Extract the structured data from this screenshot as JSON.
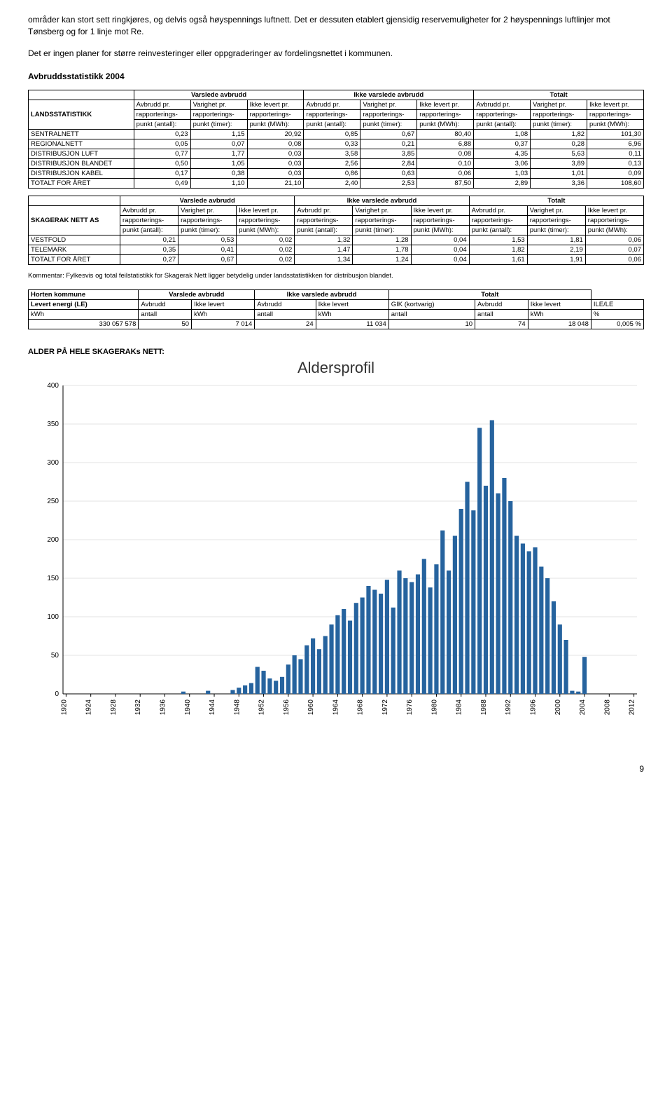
{
  "paragraphs": {
    "p1": "områder kan stort sett ringkjøres, og delvis også høyspennings luftnett. Det er dessuten etablert gjensidig reservemuligheter for 2 høyspennings luftlinjer mot Tønsberg og for 1 linje mot Re.",
    "p2": "Det er ingen planer for større reinvesteringer eller oppgraderinger av fordelingsnettet i kommunen."
  },
  "section_heading": "Avbruddsstatistikk 2004",
  "tables": {
    "lands": {
      "title": "LANDSSTATISTIKK",
      "groups": [
        "Varslede avbrudd",
        "Ikke varslede avbrudd",
        "Totalt"
      ],
      "sub1": [
        "Avbrudd pr.",
        "Varighet pr.",
        "Ikke levert pr.",
        "Avbrudd pr.",
        "Varighet pr.",
        "Ikke levert pr.",
        "Avbrudd pr.",
        "Varighet pr.",
        "Ikke levert pr."
      ],
      "sub2": [
        "rapporterings-",
        "rapporterings-",
        "rapporterings-",
        "rapporterings-",
        "rapporterings-",
        "rapporterings-",
        "rapporterings-",
        "rapporterings-",
        "rapporterings-"
      ],
      "sub3": [
        "punkt (antall):",
        "punkt (timer):",
        "punkt (MWh):",
        "punkt (antall):",
        "punkt (timer):",
        "punkt (MWh):",
        "punkt (antall):",
        "punkt (timer):",
        "punkt (MWh):"
      ],
      "rows": [
        {
          "label": "SENTRALNETT",
          "v": [
            "0,23",
            "1,15",
            "20,92",
            "0,85",
            "0,67",
            "80,40",
            "1,08",
            "1,82",
            "101,30"
          ]
        },
        {
          "label": "REGIONALNETT",
          "v": [
            "0,05",
            "0,07",
            "0,08",
            "0,33",
            "0,21",
            "6,88",
            "0,37",
            "0,28",
            "6,96"
          ]
        },
        {
          "label": "DISTRIBUSJON LUFT",
          "v": [
            "0,77",
            "1,77",
            "0,03",
            "3,58",
            "3,85",
            "0,08",
            "4,35",
            "5,63",
            "0,11"
          ]
        },
        {
          "label": "DISTRIBUSJON BLANDET",
          "v": [
            "0,50",
            "1,05",
            "0,03",
            "2,56",
            "2,84",
            "0,10",
            "3,06",
            "3,89",
            "0,13"
          ]
        },
        {
          "label": "DISTRIBUSJON KABEL",
          "v": [
            "0,17",
            "0,38",
            "0,03",
            "0,86",
            "0,63",
            "0,06",
            "1,03",
            "1,01",
            "0,09"
          ]
        },
        {
          "label": "TOTALT FOR ÅRET",
          "v": [
            "0,49",
            "1,10",
            "21,10",
            "2,40",
            "2,53",
            "87,50",
            "2,89",
            "3,36",
            "108,60"
          ]
        }
      ]
    },
    "skagerak": {
      "title": "SKAGERAK NETT AS",
      "rows": [
        {
          "label": "VESTFOLD",
          "v": [
            "0,21",
            "0,53",
            "0,02",
            "1,32",
            "1,28",
            "0,04",
            "1,53",
            "1,81",
            "0,06"
          ]
        },
        {
          "label": "TELEMARK",
          "v": [
            "0,35",
            "0,41",
            "0,02",
            "1,47",
            "1,78",
            "0,04",
            "1,82",
            "2,19",
            "0,07"
          ]
        },
        {
          "label": "TOTALT FOR ÅRET",
          "v": [
            "0,27",
            "0,67",
            "0,02",
            "1,34",
            "1,24",
            "0,04",
            "1,61",
            "1,91",
            "0,06"
          ]
        }
      ],
      "comment": "Kommentar: Fylkesvis og total feilstatistikk for Skagerak Nett ligger betydelig under landsstatistikken for distribusjon blandet."
    },
    "horten": {
      "title": "Horten kommune",
      "row1": [
        "Levert energi (LE)",
        "Avbrudd",
        "Ikke levert",
        "Avbrudd",
        "Ikke levert",
        "GIK (kortvarig)",
        "Avbrudd",
        "Ikke levert",
        "ILE/LE"
      ],
      "row2": [
        "kWh",
        "antall",
        "kWh",
        "antall",
        "kWh",
        "antall",
        "antall",
        "kWh",
        "%"
      ],
      "data": [
        "330 057 578",
        "50",
        "7 014",
        "24",
        "11 034",
        "10",
        "74",
        "18 048",
        "0,005 %"
      ]
    }
  },
  "chart": {
    "label": "ALDER PÅ HELE SKAGERAKs NETT:",
    "title": "Aldersprofil",
    "type": "bar",
    "background_color": "#ffffff",
    "grid_color": "#e3e3e3",
    "bar_color": "#26639e",
    "yticks": [
      0,
      50,
      100,
      150,
      200,
      250,
      300,
      350,
      400
    ],
    "ylim_max": 400,
    "x_start": 1920,
    "x_end": 2012,
    "x_tick_step": 4,
    "values": [
      0,
      0,
      0,
      0,
      0,
      0,
      0,
      0,
      0,
      0,
      0,
      0,
      0,
      0,
      0,
      0,
      0,
      0,
      0,
      3,
      0,
      0,
      0,
      4,
      0,
      0,
      0,
      5,
      8,
      11,
      14,
      35,
      30,
      20,
      17,
      22,
      38,
      50,
      45,
      63,
      72,
      58,
      75,
      90,
      102,
      110,
      95,
      118,
      125,
      140,
      135,
      130,
      148,
      112,
      160,
      150,
      145,
      155,
      175,
      138,
      168,
      212,
      160,
      205,
      240,
      275,
      238,
      345,
      270,
      355,
      260,
      280,
      250,
      205,
      195,
      185,
      190,
      165,
      150,
      120,
      90,
      70,
      4,
      3,
      48,
      0,
      0,
      0,
      0,
      0,
      0,
      0,
      0
    ]
  },
  "page_number": "9"
}
